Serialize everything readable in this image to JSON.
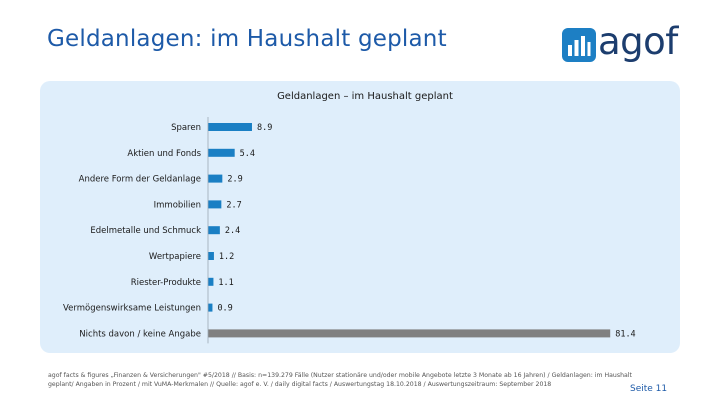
{
  "header": {
    "title": "Geldanlagen: im Haushalt geplant"
  },
  "logo": {
    "text": "agof"
  },
  "chart_data": {
    "type": "bar",
    "orientation": "horizontal",
    "title": "Geldanlagen – im Haushalt geplant",
    "categories": [
      "Sparen",
      "Aktien und Fonds",
      "Andere Form der Geldanlage",
      "Immobilien",
      "Edelmetalle und Schmuck",
      "Wertpapiere",
      "Riester-Produkte",
      "Vermögenswirksame Leistungen",
      "Nichts davon / keine Angabe"
    ],
    "values": [
      8.9,
      5.4,
      2.9,
      2.7,
      2.4,
      1.2,
      1.1,
      0.9,
      81.4
    ],
    "value_labels": [
      "8.9",
      "5.4",
      "2.9",
      "2.7",
      "2.4",
      "1.2",
      "1.1",
      "0.9",
      "81.4"
    ],
    "colors": [
      "#1a7fc4",
      "#1a7fc4",
      "#1a7fc4",
      "#1a7fc4",
      "#1a7fc4",
      "#1a7fc4",
      "#1a7fc4",
      "#1a7fc4",
      "#808080"
    ],
    "xlim": [
      0,
      85
    ],
    "xlabel": "",
    "ylabel": "",
    "grid": false,
    "legend": "none"
  },
  "footer": {
    "note": "agof facts & figures „Finanzen & Versicherungen\" #5/2018 // Basis: n=139.279 Fälle (Nutzer stationäre und/oder mobile Angebote letzte 3 Monate ab 16 Jahren) / Geldanlagen: im Haushalt geplant/ Angaben in Prozent / mit VuMA-Merkmalen // Quelle: agof e. V. / daily digital facts / Auswertungstag 18.10.2018 / Auswertungszeitraum: September 2018",
    "page": "Seite 11"
  },
  "colors": {
    "accent": "#1d5aa8",
    "panel": "#dfeefb",
    "bar": "#1a7fc4",
    "bar_other": "#808080"
  }
}
